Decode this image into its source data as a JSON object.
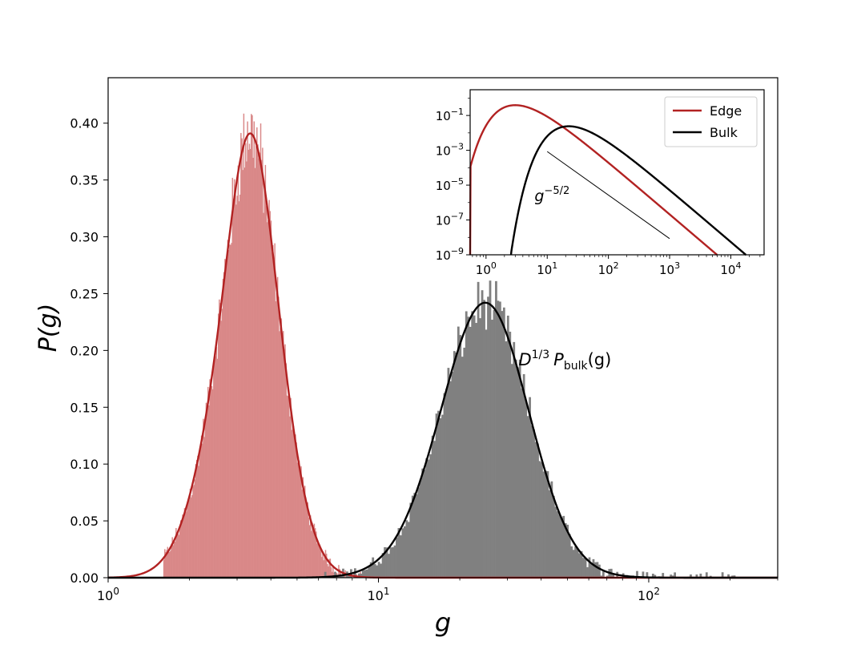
{
  "chart_data": [
    {
      "type": "histogram+line",
      "xscale": "log",
      "xlim": [
        1,
        300
      ],
      "ylim": [
        0,
        0.44
      ],
      "xlabel": "g",
      "ylabel": "P(g)",
      "xticks": [
        {
          "base": "10",
          "exp": "0",
          "value": 1
        },
        {
          "base": "10",
          "exp": "1",
          "value": 10
        },
        {
          "base": "10",
          "exp": "2",
          "value": 100
        }
      ],
      "yticks": [
        "0.00",
        "0.05",
        "0.10",
        "0.15",
        "0.20",
        "0.25",
        "0.30",
        "0.35",
        "0.40"
      ],
      "series": [
        {
          "kind": "histogram",
          "color": "#d98888",
          "peak_g": 3.0,
          "log10_sigma": 0.126,
          "skew": 2.2,
          "peak_height": 0.392
        },
        {
          "kind": "line",
          "color": "#b22222",
          "peak_g": 3.0,
          "log10_sigma": 0.126,
          "skew": 2.2,
          "peak_height": 0.391
        },
        {
          "kind": "histogram",
          "color": "#808080",
          "peak_g": 22.5,
          "log10_sigma": 0.17,
          "skew": 1.1,
          "peak_height": 0.242
        },
        {
          "kind": "line",
          "color": "#000000",
          "peak_g": 22.5,
          "log10_sigma": 0.17,
          "skew": 1.1,
          "peak_height": 0.242
        }
      ],
      "annotation": {
        "main": "D",
        "sup": "1/3",
        "p": "P",
        "sub": "bulk",
        "arg": "(g)",
        "x": 33,
        "y": 0.187
      }
    },
    {
      "type": "line",
      "xscale": "log",
      "yscale": "log",
      "xlim": [
        0.55,
        35000
      ],
      "ylim": [
        1e-09,
        3
      ],
      "xticks": [
        {
          "base": "10",
          "exp": "0"
        },
        {
          "base": "10",
          "exp": "1"
        },
        {
          "base": "10",
          "exp": "2"
        },
        {
          "base": "10",
          "exp": "3"
        },
        {
          "base": "10",
          "exp": "4"
        }
      ],
      "yticks": [
        {
          "base": "10",
          "exp": "−1"
        },
        {
          "base": "10",
          "exp": "−3"
        },
        {
          "base": "10",
          "exp": "−5"
        },
        {
          "base": "10",
          "exp": "−7"
        },
        {
          "base": "10",
          "exp": "−9"
        }
      ],
      "legend": {
        "position": "top-right",
        "entries": [
          {
            "label": "Edge",
            "color": "#b22222"
          },
          {
            "label": "Bulk",
            "color": "#000000"
          }
        ]
      },
      "series": [
        {
          "name": "Edge",
          "color": "#b22222",
          "peak_g": 3.0,
          "peak_value": 0.39,
          "tail_exponent": -2.5
        },
        {
          "name": "Bulk",
          "color": "#000000",
          "peak_g": 22.5,
          "peak_value": 0.024,
          "tail_exponent": -2.5
        }
      ],
      "reference_line": {
        "label_base": "g",
        "label_exp": "−5/2",
        "x": [
          10,
          1000
        ],
        "y": [
          0.00085,
          8.5e-09
        ]
      }
    }
  ]
}
